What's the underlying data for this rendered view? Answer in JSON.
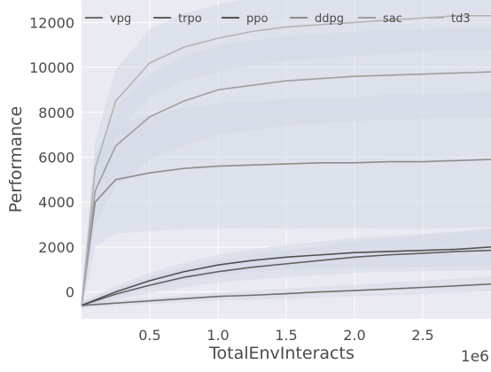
{
  "chart_data": {
    "type": "line",
    "xlabel": "TotalEnvInteracts",
    "ylabel": "Performance",
    "x_offset_label": "1e6",
    "xlim": [
      0.0,
      3.0
    ],
    "ylim": [
      -1200,
      13000
    ],
    "xticks": [
      0.5,
      1.0,
      1.5,
      2.0,
      2.5
    ],
    "xtick_labels": [
      "0.5",
      "1.0",
      "1.5",
      "2.0",
      "2.5"
    ],
    "yticks": [
      0,
      2000,
      4000,
      6000,
      8000,
      10000,
      12000
    ],
    "ytick_labels": [
      "0",
      "2000",
      "4000",
      "6000",
      "8000",
      "10000",
      "12000"
    ],
    "grid": true,
    "legend_position": "top",
    "colors": {
      "background": "#eaeaf2",
      "grid": "#ffffff",
      "band": "#d2d9e6",
      "text": "#4a4a4a"
    },
    "series": [
      {
        "name": "vpg",
        "color": "#6e6e6e",
        "x": [
          0.0,
          0.25,
          0.5,
          0.75,
          1.0,
          1.25,
          1.5,
          1.75,
          2.0,
          2.25,
          2.5,
          2.75,
          3.0
        ],
        "y": [
          -600,
          -500,
          -400,
          -300,
          -200,
          -150,
          -80,
          0,
          60,
          130,
          200,
          270,
          350
        ],
        "band": [
          100,
          120,
          140,
          160,
          180,
          200,
          220,
          240,
          260,
          280,
          300,
          320,
          340
        ]
      },
      {
        "name": "trpo",
        "color": "#5f5f5f",
        "x": [
          0.0,
          0.25,
          0.5,
          0.75,
          1.0,
          1.25,
          1.5,
          1.75,
          2.0,
          2.25,
          2.5,
          2.75,
          3.0
        ],
        "y": [
          -600,
          -100,
          300,
          650,
          900,
          1100,
          1250,
          1400,
          1550,
          1650,
          1720,
          1800,
          1850
        ],
        "band": [
          150,
          250,
          350,
          450,
          500,
          550,
          600,
          650,
          700,
          750,
          800,
          850,
          900
        ]
      },
      {
        "name": "ppo",
        "color": "#505050",
        "x": [
          0.0,
          0.25,
          0.5,
          0.75,
          1.0,
          1.25,
          1.5,
          1.75,
          2.0,
          2.25,
          2.5,
          2.75,
          3.0
        ],
        "y": [
          -600,
          0,
          500,
          900,
          1200,
          1400,
          1550,
          1650,
          1750,
          1800,
          1850,
          1900,
          2000
        ],
        "band": [
          150,
          250,
          350,
          400,
          450,
          500,
          550,
          600,
          650,
          700,
          750,
          800,
          850
        ]
      },
      {
        "name": "ddpg",
        "color": "#8c8c8c",
        "x": [
          0.0,
          0.1,
          0.25,
          0.5,
          0.75,
          1.0,
          1.25,
          1.5,
          1.75,
          2.0,
          2.25,
          2.5,
          2.75,
          3.0
        ],
        "y": [
          -600,
          4000,
          5000,
          5300,
          5500,
          5600,
          5650,
          5700,
          5750,
          5750,
          5800,
          5800,
          5850,
          5900
        ],
        "band": [
          300,
          2000,
          2400,
          2600,
          2700,
          2800,
          2800,
          2900,
          2900,
          2900,
          3000,
          3000,
          3000,
          3000
        ]
      },
      {
        "name": "sac",
        "color": "#9e9e9e",
        "x": [
          0.0,
          0.1,
          0.25,
          0.5,
          0.75,
          1.0,
          1.25,
          1.5,
          1.75,
          2.0,
          2.25,
          2.5,
          2.75,
          3.0
        ],
        "y": [
          -600,
          4500,
          6500,
          7800,
          8500,
          9000,
          9200,
          9400,
          9500,
          9600,
          9650,
          9700,
          9750,
          9800
        ],
        "band": [
          300,
          1500,
          1800,
          1900,
          2000,
          2000,
          2000,
          2000,
          2000,
          2000,
          2000,
          2000,
          2000,
          2000
        ]
      },
      {
        "name": "td3",
        "color": "#b3b3b3",
        "x": [
          0.0,
          0.1,
          0.25,
          0.5,
          0.75,
          1.0,
          1.25,
          1.5,
          1.75,
          2.0,
          2.25,
          2.5,
          2.75,
          3.0
        ],
        "y": [
          -600,
          5500,
          8500,
          10200,
          10900,
          11300,
          11600,
          11800,
          11900,
          12000,
          12100,
          12200,
          12300,
          12300
        ],
        "band": [
          300,
          1200,
          1400,
          1500,
          1500,
          1500,
          1500,
          1500,
          1500,
          1500,
          1500,
          1500,
          1500,
          1500
        ]
      }
    ]
  }
}
